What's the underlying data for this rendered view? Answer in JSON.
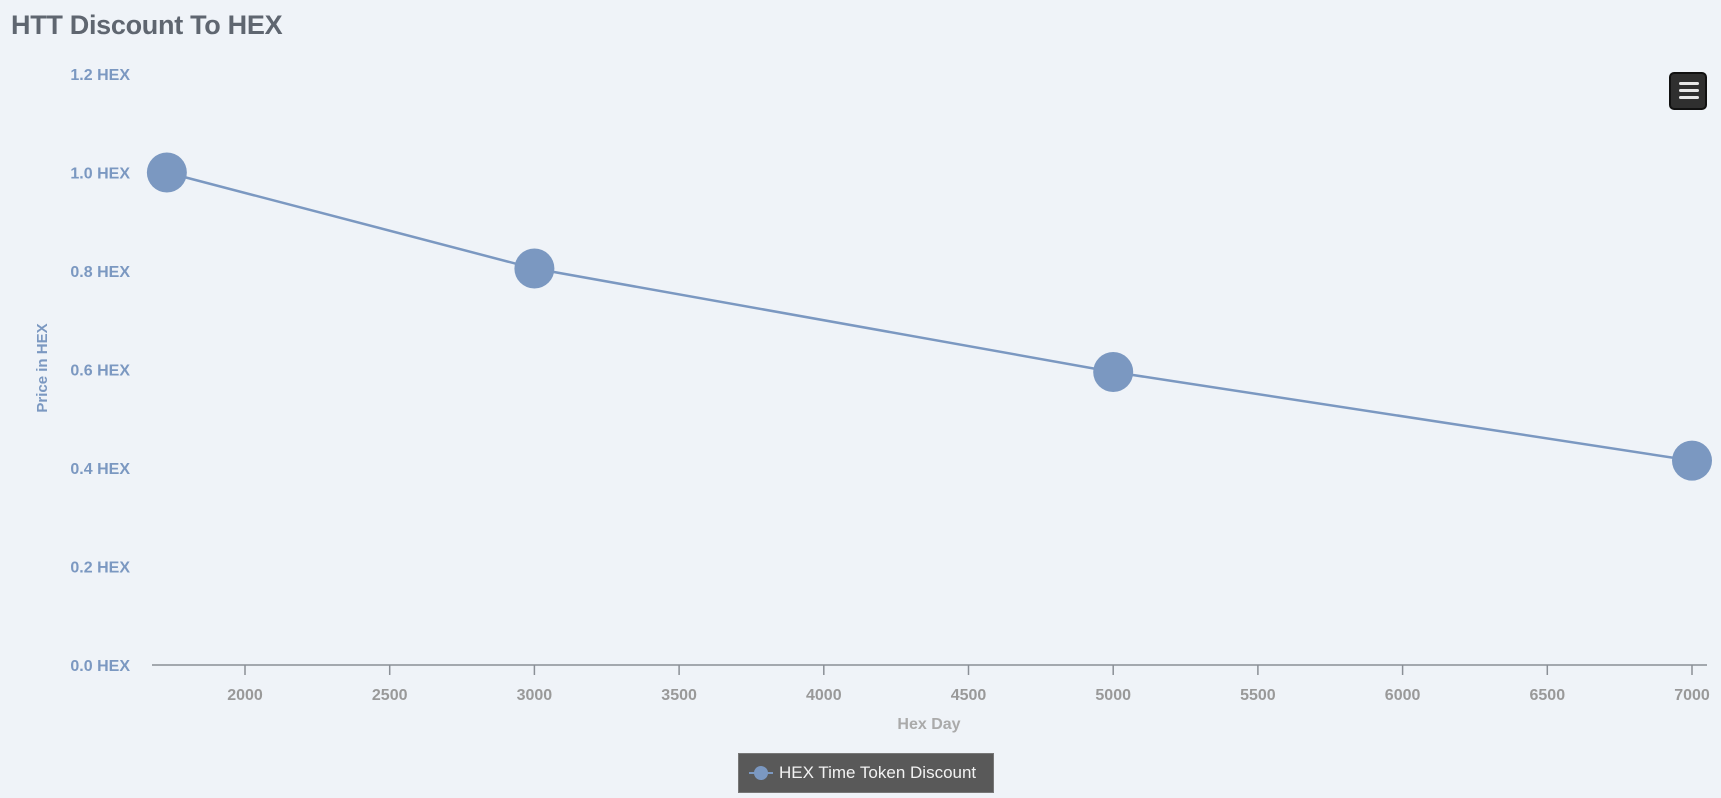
{
  "chart_data": {
    "type": "line",
    "title": "HTT Discount To HEX",
    "xlabel": "Hex Day",
    "ylabel": "Price in HEX",
    "x_ticks": [
      "2000",
      "2500",
      "3000",
      "3500",
      "4000",
      "4500",
      "5000",
      "5500",
      "6000",
      "6500",
      "7000"
    ],
    "y_ticks": [
      "0.0 HEX",
      "0.2 HEX",
      "0.4 HEX",
      "0.6 HEX",
      "0.8 HEX",
      "1.0 HEX",
      "1.2 HEX"
    ],
    "xlim": [
      1680,
      7050
    ],
    "ylim": [
      0,
      1.2
    ],
    "grid": false,
    "legend_position": "bottom-center",
    "series": [
      {
        "name": "HEX Time Token Discount",
        "color": "#7b98c1",
        "x": [
          1730,
          3000,
          5000,
          7000
        ],
        "y": [
          1.0,
          0.805,
          0.595,
          0.415
        ]
      }
    ]
  },
  "menu": {
    "icon": "hamburger-menu-icon"
  },
  "colors": {
    "background": "#eff3f8",
    "series": "#7b98c1",
    "y_tick_label": "#7b98c1",
    "x_tick_label": "#999999",
    "title": "#5f6670",
    "legend_background": "#595959"
  }
}
